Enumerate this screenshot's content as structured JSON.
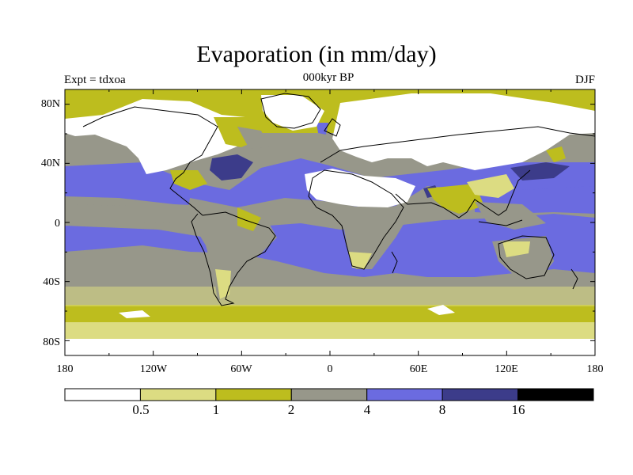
{
  "header": {
    "title": "Evaporation (in mm/day)",
    "subtitle": "000kyr BP",
    "left_label": "Expt = tdxoa",
    "right_label": "DJF"
  },
  "map": {
    "lat_ticks": [
      "80N",
      "40N",
      "0",
      "40S",
      "80S"
    ],
    "lon_ticks": [
      "180",
      "120W",
      "60W",
      "0",
      "60E",
      "120E",
      "180"
    ]
  },
  "colorbar": {
    "colors": [
      "#ffffff",
      "#dcdc82",
      "#bdbd1e",
      "#97978a",
      "#6b6be0",
      "#3c3c8a",
      "#000000"
    ],
    "labels": [
      "0.5",
      "1",
      "2",
      "4",
      "8",
      "16"
    ]
  }
}
